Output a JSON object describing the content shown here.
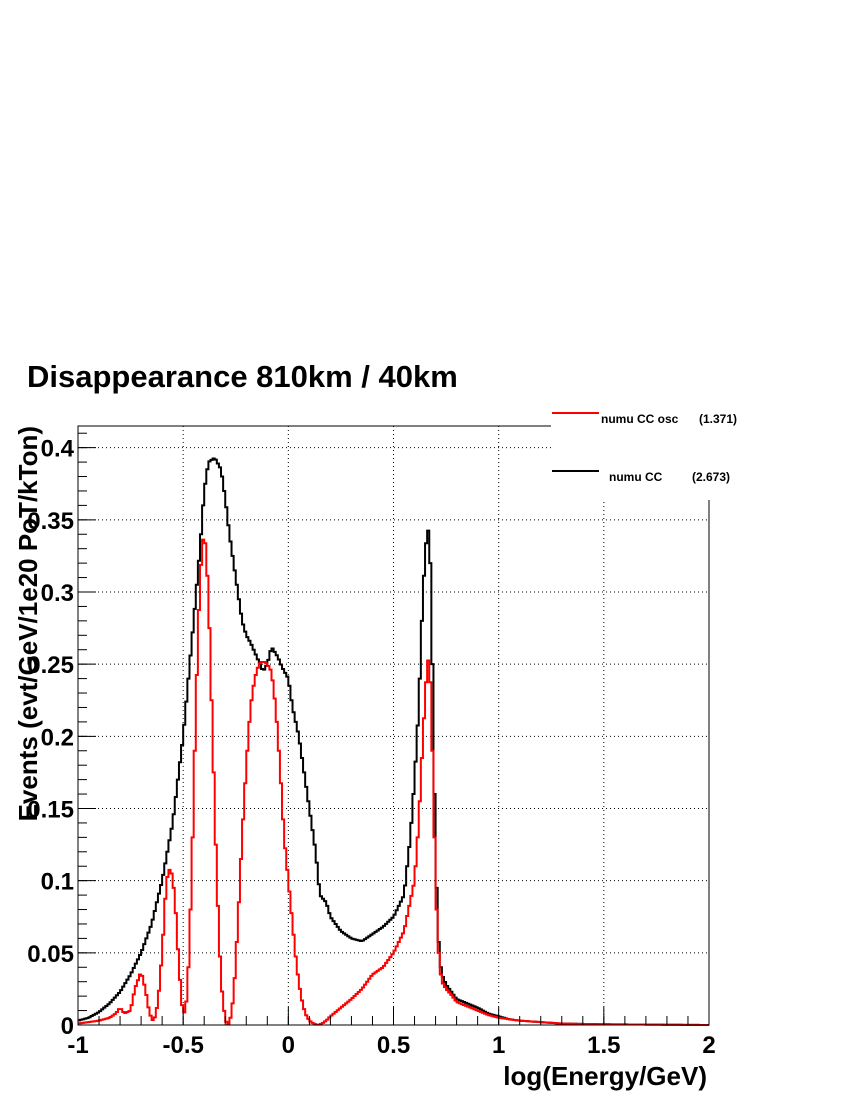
{
  "chart_data": {
    "type": "line",
    "title": "Disappearance 810km / 40km",
    "xlabel": "log(Energy/GeV)",
    "ylabel": "Events (evt/GeV/1e20 PoT/kTon)",
    "xlim": [
      -1,
      2
    ],
    "ylim": [
      0,
      0.415
    ],
    "grid": true,
    "legend_position": "top-right",
    "x_ticks": [
      "-1",
      "-0.5",
      "0",
      "0.5",
      "1",
      "1.5",
      "2"
    ],
    "y_ticks": [
      "0",
      "0.05",
      "0.1",
      "0.15",
      "0.2",
      "0.25",
      "0.3",
      "0.35",
      "0.4"
    ],
    "legend": [
      {
        "name": "numu CC osc",
        "integral": "(1.371)",
        "color": "#ff0000"
      },
      {
        "name": "numu CC",
        "integral": "(2.673)",
        "color": "#000000"
      }
    ],
    "series": [
      {
        "name": "numu CC",
        "color": "#000000",
        "x": [
          -1.0,
          -0.95,
          -0.9,
          -0.85,
          -0.8,
          -0.75,
          -0.7,
          -0.65,
          -0.6,
          -0.55,
          -0.5,
          -0.45,
          -0.42,
          -0.4,
          -0.38,
          -0.35,
          -0.32,
          -0.3,
          -0.28,
          -0.25,
          -0.22,
          -0.2,
          -0.18,
          -0.15,
          -0.12,
          -0.1,
          -0.08,
          -0.05,
          -0.03,
          0.0,
          0.02,
          0.05,
          0.08,
          0.1,
          0.13,
          0.15,
          0.18,
          0.2,
          0.25,
          0.3,
          0.35,
          0.4,
          0.45,
          0.5,
          0.55,
          0.58,
          0.6,
          0.62,
          0.64,
          0.66,
          0.67,
          0.68,
          0.69,
          0.7,
          0.71,
          0.72,
          0.73,
          0.75,
          0.78,
          0.8,
          0.85,
          0.9,
          0.95,
          1.0,
          1.05,
          1.1,
          1.2,
          1.3,
          1.5,
          2.0
        ],
        "values": [
          0.003,
          0.005,
          0.009,
          0.015,
          0.023,
          0.035,
          0.05,
          0.07,
          0.1,
          0.14,
          0.2,
          0.28,
          0.33,
          0.37,
          0.39,
          0.393,
          0.385,
          0.365,
          0.34,
          0.31,
          0.28,
          0.27,
          0.265,
          0.255,
          0.245,
          0.25,
          0.262,
          0.255,
          0.248,
          0.24,
          0.22,
          0.2,
          0.17,
          0.15,
          0.12,
          0.09,
          0.085,
          0.075,
          0.065,
          0.06,
          0.058,
          0.063,
          0.068,
          0.075,
          0.09,
          0.13,
          0.17,
          0.22,
          0.3,
          0.345,
          0.34,
          0.3,
          0.2,
          0.12,
          0.07,
          0.045,
          0.035,
          0.028,
          0.022,
          0.018,
          0.015,
          0.012,
          0.008,
          0.006,
          0.004,
          0.003,
          0.002,
          0.001,
          0.0005,
          0.0
        ]
      },
      {
        "name": "numu CC osc",
        "color": "#ff0000",
        "x": [
          -1.0,
          -0.9,
          -0.85,
          -0.82,
          -0.8,
          -0.78,
          -0.75,
          -0.73,
          -0.7,
          -0.68,
          -0.66,
          -0.64,
          -0.62,
          -0.6,
          -0.58,
          -0.56,
          -0.54,
          -0.52,
          -0.5,
          -0.48,
          -0.46,
          -0.44,
          -0.42,
          -0.4,
          -0.38,
          -0.36,
          -0.34,
          -0.32,
          -0.3,
          -0.28,
          -0.26,
          -0.24,
          -0.22,
          -0.2,
          -0.18,
          -0.16,
          -0.14,
          -0.12,
          -0.1,
          -0.08,
          -0.06,
          -0.04,
          -0.02,
          0.0,
          0.02,
          0.04,
          0.06,
          0.08,
          0.1,
          0.12,
          0.14,
          0.16,
          0.18,
          0.2,
          0.25,
          0.3,
          0.35,
          0.4,
          0.45,
          0.5,
          0.55,
          0.6,
          0.62,
          0.64,
          0.66,
          0.67,
          0.68,
          0.69,
          0.7,
          0.71,
          0.72,
          0.73,
          0.75,
          0.78,
          0.8,
          0.85,
          0.9,
          0.95,
          1.0,
          1.05,
          1.1,
          1.2,
          1.3,
          1.5,
          2.0
        ],
        "values": [
          0.001,
          0.003,
          0.005,
          0.008,
          0.012,
          0.008,
          0.01,
          0.025,
          0.037,
          0.025,
          0.008,
          0.002,
          0.015,
          0.05,
          0.1,
          0.11,
          0.09,
          0.04,
          0.005,
          0.02,
          0.1,
          0.22,
          0.31,
          0.345,
          0.3,
          0.2,
          0.1,
          0.03,
          0.003,
          0.0,
          0.02,
          0.07,
          0.13,
          0.18,
          0.22,
          0.24,
          0.25,
          0.252,
          0.25,
          0.245,
          0.22,
          0.18,
          0.13,
          0.1,
          0.07,
          0.04,
          0.02,
          0.008,
          0.003,
          0.001,
          0.0,
          0.001,
          0.003,
          0.006,
          0.012,
          0.018,
          0.025,
          0.035,
          0.04,
          0.05,
          0.065,
          0.1,
          0.14,
          0.2,
          0.25,
          0.255,
          0.22,
          0.16,
          0.1,
          0.06,
          0.04,
          0.03,
          0.025,
          0.02,
          0.016,
          0.013,
          0.01,
          0.007,
          0.005,
          0.004,
          0.003,
          0.002,
          0.001,
          0.0005,
          0.0
        ]
      }
    ]
  }
}
